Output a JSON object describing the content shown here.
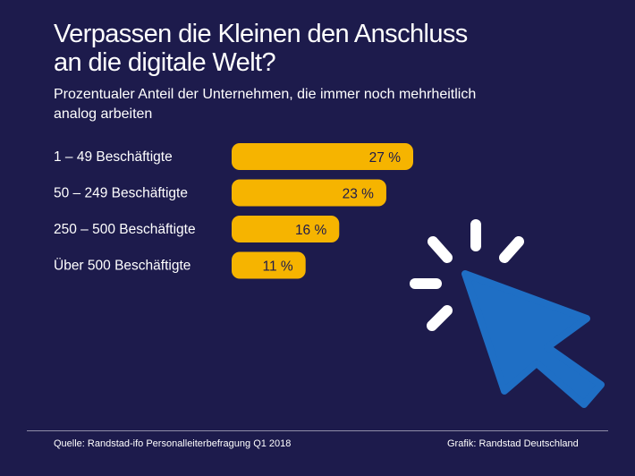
{
  "chart_data": {
    "type": "bar",
    "orientation": "horizontal",
    "title": "Verpassen die Kleinen den Anschluss an die digitale Welt?",
    "title_lines": [
      "Verpassen die Kleinen den Anschluss",
      "an die digitale Welt?"
    ],
    "subtitle": "Prozentualer Anteil der Unternehmen, die immer noch mehrheitlich analog arbeiten",
    "subtitle_lines": [
      "Prozentualer Anteil der Unternehmen, die immer noch mehrheitlich",
      "analog arbeiten"
    ],
    "categories": [
      "1 – 49 Beschäftigte",
      "50 – 249 Beschäftigte",
      "250 – 500 Beschäftigte",
      "Über 500 Beschäftigte"
    ],
    "values": [
      27,
      23,
      16,
      11
    ],
    "value_labels": [
      "27 %",
      "23 %",
      "16 %",
      "11 %"
    ],
    "unit": "%",
    "xlim": [
      0,
      27
    ],
    "grid": false,
    "legend": "none"
  },
  "colors": {
    "background": "#1d1b4c",
    "bar": "#f6b400",
    "bar_label": "#1d1b4c",
    "text": "#ffffff",
    "cursor": "#1f6fc5"
  },
  "illustration": {
    "icon": "mouse-cursor-click-icon"
  },
  "footer": {
    "source": "Quelle: Randstad-ifo Personalleiterbefragung Q1 2018",
    "credit": "Grafik: Randstad Deutschland"
  }
}
